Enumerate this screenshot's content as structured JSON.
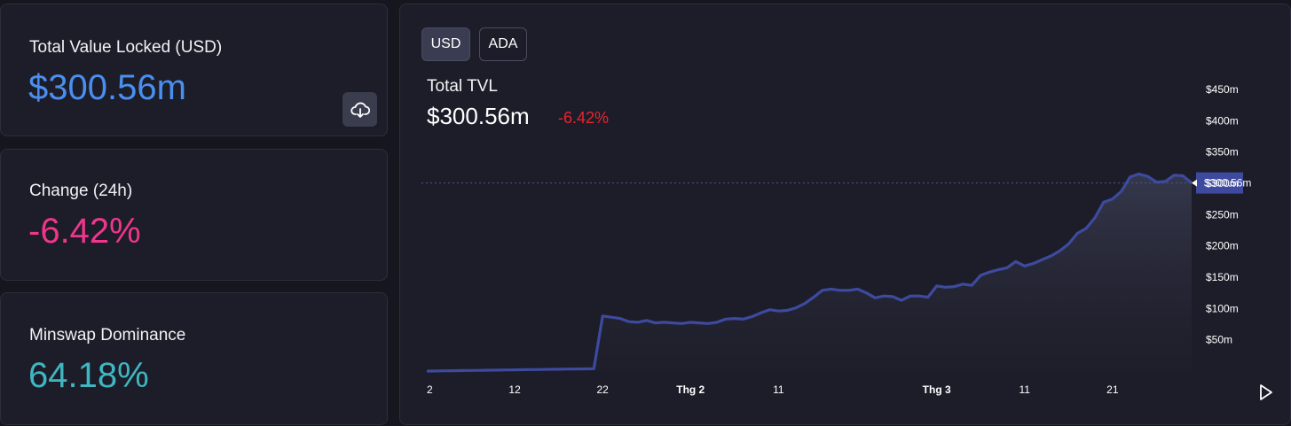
{
  "stats": {
    "tvl": {
      "label": "Total Value Locked (USD)",
      "value": "$300.56m",
      "color": "#4a8ff0",
      "download_icon": "cloud-download-icon"
    },
    "change": {
      "label": "Change (24h)",
      "value": "-6.42%",
      "color": "#f0368c"
    },
    "dominance": {
      "label": "Minswap Dominance",
      "value": "64.18%",
      "color": "#3fb7c2"
    }
  },
  "toggles": {
    "usd": "USD",
    "ada": "ADA",
    "selected": "USD"
  },
  "chart_header": {
    "title": "Total TVL",
    "value": "$300.56m",
    "change": "-6.42%",
    "change_color": "#e8242f"
  },
  "play_icon": "play-icon",
  "chart_data": {
    "type": "area",
    "ylim": [
      0,
      450
    ],
    "y_ticks": [
      {
        "value": 50,
        "label": "$50m"
      },
      {
        "value": 100,
        "label": "$100m"
      },
      {
        "value": 150,
        "label": "$150m"
      },
      {
        "value": 200,
        "label": "$200m"
      },
      {
        "value": 250,
        "label": "$250m"
      },
      {
        "value": 300,
        "label": "$300m"
      },
      {
        "value": 350,
        "label": "$350m"
      },
      {
        "value": 400,
        "label": "$400m"
      },
      {
        "value": 450,
        "label": "$450m"
      }
    ],
    "x_ticks": [
      {
        "x": 0,
        "label": "2",
        "bold": false
      },
      {
        "x": 10,
        "label": "12",
        "bold": false
      },
      {
        "x": 20,
        "label": "22",
        "bold": false
      },
      {
        "x": 30,
        "label": "Thg 2",
        "bold": true
      },
      {
        "x": 40,
        "label": "11",
        "bold": false
      },
      {
        "x": 58,
        "label": "Thg 3",
        "bold": true
      },
      {
        "x": 68,
        "label": "11",
        "bold": false
      },
      {
        "x": 78,
        "label": "21",
        "bold": false
      }
    ],
    "x_max": 87,
    "current": {
      "value": 300.56,
      "label": "$300.56m"
    },
    "line_color": "#3d4a9e",
    "series": [
      {
        "values": [
          0,
          0.2,
          0.4,
          0.6,
          0.8,
          1,
          1.2,
          1.4,
          1.6,
          1.8,
          2,
          2.2,
          2.4,
          2.6,
          2.8,
          3,
          3.2,
          3.4,
          3.6,
          3.8,
          88,
          86,
          84,
          79,
          78,
          81,
          77,
          78,
          77,
          76,
          78,
          77,
          76,
          78,
          83,
          84,
          83,
          87,
          93,
          98,
          96,
          97,
          101,
          108,
          118,
          129,
          131,
          129,
          129,
          131,
          125,
          117,
          120,
          119,
          113,
          120,
          120,
          118,
          136,
          134,
          135,
          139,
          137,
          153,
          158,
          162,
          165,
          175,
          168,
          172,
          178,
          184,
          192,
          203,
          220,
          228,
          245,
          270,
          275,
          287,
          310,
          315,
          311,
          302,
          303,
          313,
          312,
          300.56
        ]
      }
    ]
  }
}
